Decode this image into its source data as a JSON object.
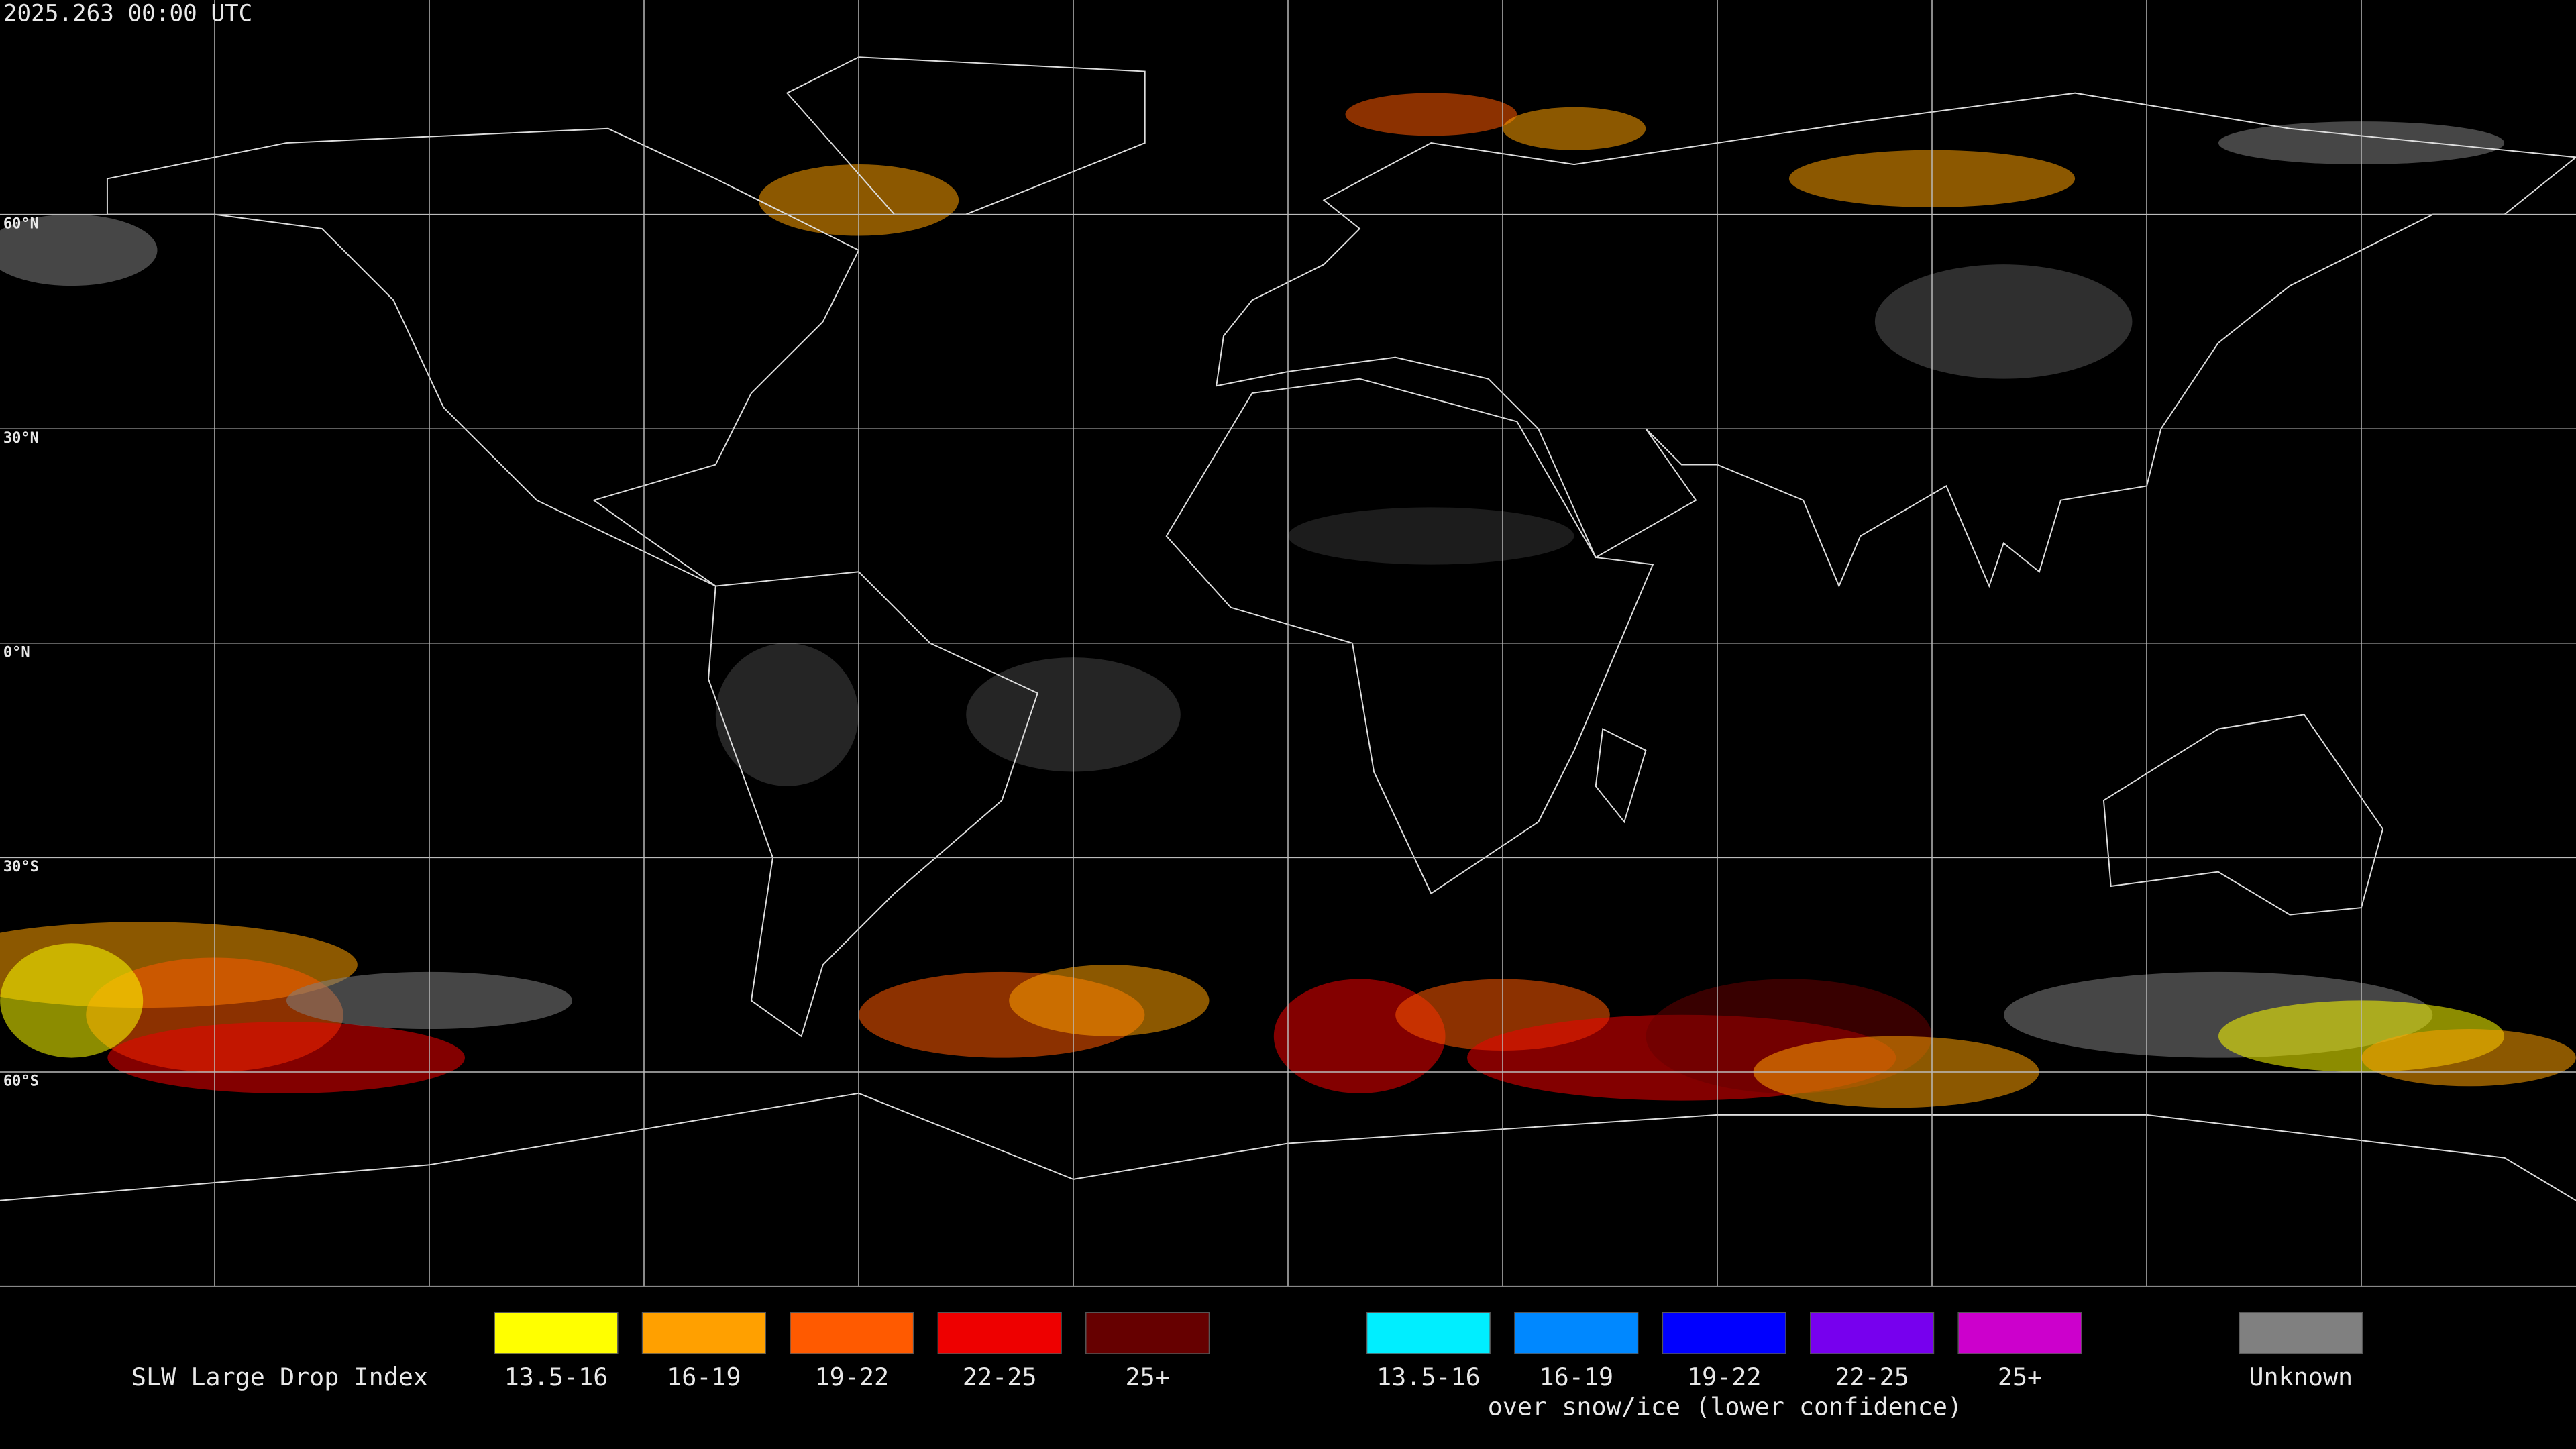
{
  "timestamp": "2025.263 00:00 UTC",
  "latitude_labels": [
    "60°N",
    "30°N",
    "0°N",
    "30°S",
    "60°S"
  ],
  "legend": {
    "title": "SLW Large Drop Index",
    "items": [
      {
        "label": "13.5-16",
        "color": "#ffff00"
      },
      {
        "label": "16-19",
        "color": "#ffa000"
      },
      {
        "label": "19-22",
        "color": "#ff5a00"
      },
      {
        "label": "22-25",
        "color": "#ee0000"
      },
      {
        "label": "25+",
        "color": "#660000"
      }
    ],
    "snow_ice_items": [
      {
        "label": "13.5-16",
        "color": "#00eeff"
      },
      {
        "label": "16-19",
        "color": "#0088ff"
      },
      {
        "label": "19-22",
        "color": "#0000ff"
      },
      {
        "label": "22-25",
        "color": "#7700ee"
      },
      {
        "label": "25+",
        "color": "#cc00cc"
      }
    ],
    "snow_ice_caption": "over snow/ice (lower confidence)",
    "unknown": {
      "label": "Unknown",
      "color": "#808080"
    }
  }
}
